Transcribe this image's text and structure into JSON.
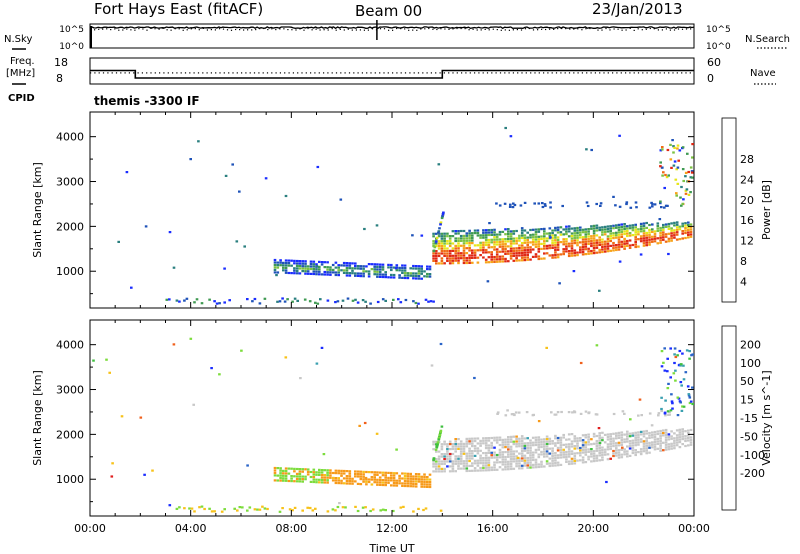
{
  "header": {
    "station": "Fort Hays East (fitACF)",
    "beam": "Beam 00",
    "date": "23/Jan/2013"
  },
  "top_panels": {
    "noise": {
      "left_label": "N.Sky",
      "right_label": "N.Search",
      "left_ticks": [
        "10^5",
        "10^0"
      ],
      "right_ticks": [
        "10^5",
        "10^0"
      ],
      "sky_level": 0.85,
      "search_level": 0.8
    },
    "freq": {
      "left_label_1": "Freq.",
      "left_label_2": "[MHz]",
      "right_label": "Nave",
      "left_ticks": [
        "18",
        "8"
      ],
      "right_ticks": [
        "60",
        "0"
      ],
      "cpid_label": "CPID",
      "cpid_text": "themis -3300 IF",
      "freq_steps": [
        {
          "from_h": 0.0,
          "to_h": 1.8,
          "mhz": 13.2
        },
        {
          "from_h": 1.8,
          "to_h": 14.0,
          "mhz": 10.3
        },
        {
          "from_h": 14.0,
          "to_h": 24.0,
          "mhz": 13.2
        }
      ],
      "nave_level": 0.45
    }
  },
  "chart_data": [
    {
      "type": "heatmap",
      "name": "power",
      "ylabel": "Slant Range [km]",
      "yticks": [
        1000,
        2000,
        3000,
        4000
      ],
      "ylim": [
        180,
        4550
      ],
      "xlim": [
        0,
        24
      ],
      "colorbar_label": "Power [dB]",
      "colorbar_ticks": [
        "4",
        "8",
        "12",
        "16",
        "20",
        "24",
        "28"
      ],
      "colorbar_colors": [
        "#1a2cff",
        "#1e52b8",
        "#2a7f7f",
        "#3f9a52",
        "#7cc242",
        "#e6e619",
        "#f7a319",
        "#f06a14",
        "#e02814"
      ],
      "bands": [
        {
          "from_h": 7.3,
          "to_h": 13.5,
          "lo_km": 800,
          "hi_km": 1250
        },
        {
          "from_h": 13.6,
          "to_h": 23.9,
          "lo_km": 1200,
          "hi_km": 1900
        }
      ]
    },
    {
      "type": "heatmap",
      "name": "velocity",
      "ylabel": "Slant Range [km]",
      "yticks": [
        1000,
        2000,
        3000,
        4000
      ],
      "ylim": [
        180,
        4550
      ],
      "xlim": [
        0,
        24
      ],
      "xticks": [
        "00:00",
        "04:00",
        "08:00",
        "12:00",
        "16:00",
        "20:00",
        "00:00"
      ],
      "xlabel": "Time UT",
      "colorbar_label": "Velocity [m s^-1]",
      "colorbar_ticks": [
        "200",
        "100",
        "50",
        "15",
        "-15",
        "-50",
        "-100",
        "-200"
      ],
      "colorbar_colors": [
        "#1a2cff",
        "#2a64c8",
        "#3aa0b0",
        "#3fbf3f",
        "#7cdc3c",
        "#c8c8c8",
        "#f7c219",
        "#f79a19",
        "#f0601c",
        "#e01e1e"
      ]
    }
  ]
}
